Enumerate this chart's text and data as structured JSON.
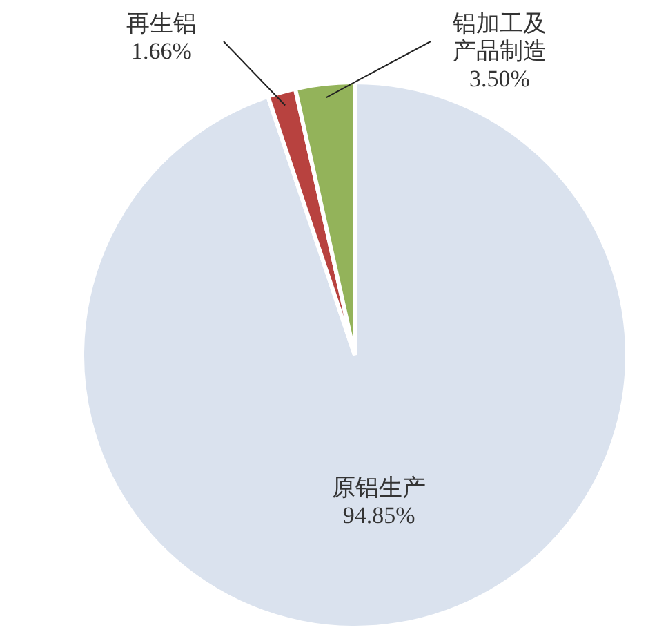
{
  "chart_data": {
    "type": "pie",
    "categories": [
      "原铝生产",
      "再生铝",
      "铝加工及产品制造"
    ],
    "values": [
      94.85,
      1.66,
      3.5
    ],
    "colors": [
      "#dae2ee",
      "#b8423f",
      "#93b35a"
    ],
    "value_labels": [
      "94.85%",
      "1.66%",
      "3.50%"
    ]
  }
}
